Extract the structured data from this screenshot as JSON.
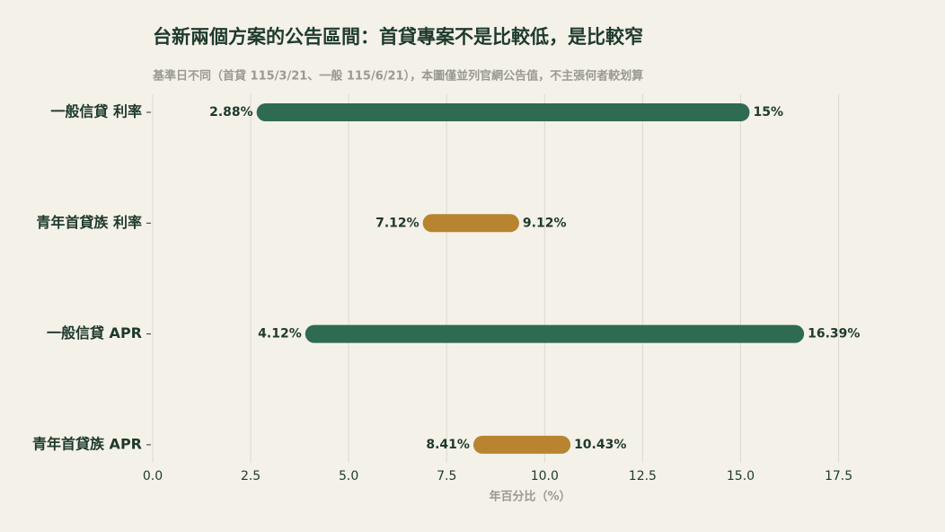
{
  "chart_data": {
    "type": "range_bar",
    "title": "台新兩個方案的公告區間：首貸專案不是比較低，是比較窄",
    "subtitle": "基準日不同（首貸 115/3/21、一般 115/6/21），本圖僅並列官網公告值，不主張何者較划算",
    "xlabel": "年百分比（%）",
    "categories": [
      "一般信貸 利率",
      "青年首貸族 利率",
      "一般信貸 APR",
      "青年首貸族 APR"
    ],
    "colors": [
      "#2e6b52",
      "#b8842f",
      "#2e6b52",
      "#b8842f"
    ],
    "start": {
      "values": [
        2.88,
        7.12,
        4.12,
        8.41
      ],
      "value_labels": [
        "2.88%",
        "7.12%",
        "4.12%",
        "8.41%"
      ]
    },
    "end": {
      "values": [
        15,
        9.12,
        16.39,
        10.43
      ],
      "value_labels": [
        "15%",
        "9.12%",
        "16.39%",
        "10.43%"
      ]
    },
    "xlim": [
      0,
      19
    ],
    "xticks": [
      {
        "value": 0,
        "label": "0.0"
      },
      2.5,
      {
        "value": 5,
        "label": "5.0"
      },
      7.5,
      {
        "value": 10,
        "label": "10.0"
      },
      12.5,
      {
        "value": 15,
        "label": "15.0"
      },
      17.5
    ],
    "grid": true
  }
}
